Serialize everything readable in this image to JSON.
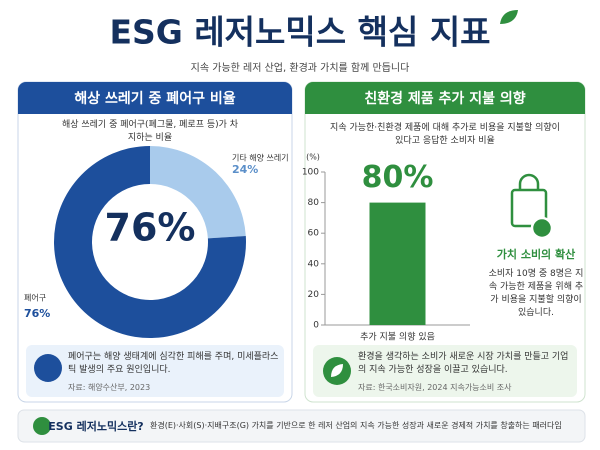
{
  "header": {
    "title": "ESG 레저노믹스 핵심 지표",
    "subtitle": "지속 가능한 레저 산업, 환경과 가치를 함께 만듭니다"
  },
  "chart_data": [
    {
      "type": "pie",
      "title": "해상 쓰레기 중 폐어구 비율",
      "subtitle": "해상 쓰레기 중 폐어구(폐그물, 폐로프 등)가 차지하는 비율",
      "categories": [
        "기타 해양 쓰레기",
        "폐어구"
      ],
      "values": [
        24,
        76
      ],
      "value_labels": [
        "24%",
        "76%"
      ],
      "colors": [
        "#a9cbec",
        "#1d4f9c"
      ],
      "note": "폐어구는 해양 생태계에 심각한 피해를 주며, 미세플라스틱 발생의 주요 원인입니다.",
      "source": "자료: 해양수산부, 2023"
    },
    {
      "type": "bar",
      "title": "친환경 제품 추가 지불 의향",
      "subtitle": "지속 가능한·친환경 제품에 대해 추가로 비용을 지불할 의향이 있다고 응답한 소비자 비율",
      "y_label": "(%)",
      "categories": [
        "추가 지불 의향 있음"
      ],
      "values": [
        80
      ],
      "value_labels": [
        "80%"
      ],
      "color": "#2f8f3f",
      "ylim": [
        0,
        100
      ],
      "yticks": [
        0,
        20,
        40,
        60,
        80,
        100
      ],
      "side_title": "가치 소비의 확산",
      "side_text": "소비자 10명 중 8명은 지속 가능한 제품을 위해 추가 비용을 지불할 의향이 있습니다.",
      "note": "환경을 생각하는 소비가 새로운 시장 가치를 만들고 기업의 지속 가능한 성장을 이끌고 있습니다.",
      "source": "자료: 한국소비자원, 2024 지속가능소비 조사"
    }
  ],
  "footer": {
    "title": "ESG 레저노믹스란?",
    "text": "환경(E)·사회(S)·지배구조(G) 가치를 기반으로 한 레저 산업의 지속 가능한 성장과 새로운 경제적 가치를 창출하는 패러다임"
  }
}
